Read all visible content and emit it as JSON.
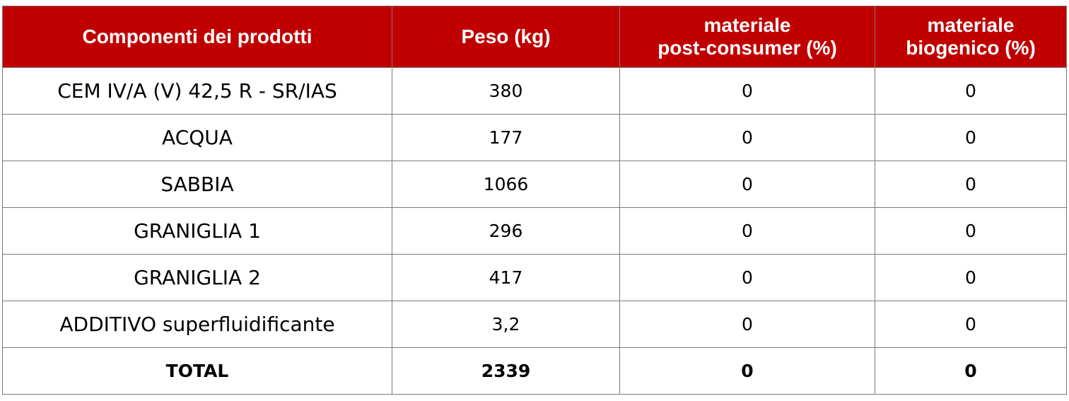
{
  "table": {
    "headers": [
      "Componenti dei prodotti",
      "Peso (kg)",
      "materiale post-consumer (%)",
      "materiale biogenico (%)"
    ],
    "header_lines": [
      [
        "Componenti dei prodotti"
      ],
      [
        "Peso (kg)"
      ],
      [
        "materiale",
        "post-consumer (%)"
      ],
      [
        "materiale",
        "biogenico (%)"
      ]
    ],
    "rows": [
      [
        "CEM IV/A (V) 42,5 R - SR/IAS",
        "380",
        "0",
        "0"
      ],
      [
        "ACQUA",
        "177",
        "0",
        "0"
      ],
      [
        "SABBIA",
        "1066",
        "0",
        "0"
      ],
      [
        "GRANIGLIA 1",
        "296",
        "0",
        "0"
      ],
      [
        "GRANIGLIA 2",
        "417",
        "0",
        "0"
      ],
      [
        "ADDITIVO superfluidificante",
        "3,2",
        "0",
        "0"
      ]
    ],
    "total": [
      "TOTAL",
      "2339",
      "0",
      "0"
    ]
  },
  "colors": {
    "header_bg": "#c00000",
    "header_text": "#ffffff",
    "border": "#7a7a7a"
  }
}
